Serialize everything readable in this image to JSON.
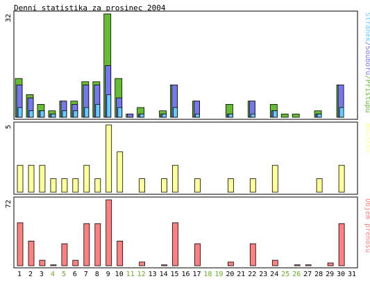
{
  "title": "Denní statistika za prosinec 2004",
  "days": [
    1,
    2,
    3,
    4,
    5,
    6,
    7,
    8,
    9,
    10,
    11,
    12,
    13,
    14,
    15,
    16,
    17,
    18,
    19,
    20,
    21,
    22,
    23,
    24,
    25,
    26,
    27,
    28,
    29,
    30,
    31
  ],
  "weekend_days": [
    4,
    5,
    11,
    12,
    18,
    19,
    25,
    26
  ],
  "colors": {
    "hits": "#66bb33",
    "files": "#7777ee",
    "pages": "#66ccff",
    "visits": "#ffff99",
    "volume": "#ff8080",
    "weekend_label": "#66aa22",
    "frame": "#000000",
    "background": "#ffffff",
    "panel_background": "#f0f0f0"
  },
  "chart_data": [
    {
      "type": "bar",
      "panel": "top",
      "ylabel_max": "32",
      "ymax": 32,
      "legend_text": [
        "Stránek",
        "/",
        "Souborů",
        "/",
        "Přístupů"
      ],
      "legend_position": "right",
      "series": [
        {
          "name": "Přístupů",
          "values": [
            12,
            7,
            4,
            2,
            5,
            5,
            11,
            11,
            32,
            12,
            1,
            3,
            0,
            2,
            10,
            0,
            5,
            0,
            0,
            4,
            0,
            5,
            0,
            4,
            1,
            1,
            0,
            2,
            0,
            10,
            0
          ]
        },
        {
          "name": "Souborů",
          "values": [
            10,
            6,
            2,
            1,
            5,
            4,
            10,
            10,
            16,
            6,
            1,
            1,
            0,
            1,
            10,
            0,
            5,
            0,
            0,
            1,
            0,
            5,
            0,
            2,
            0,
            0,
            0,
            1,
            0,
            10,
            0
          ]
        },
        {
          "name": "Stránek",
          "values": [
            3,
            2,
            2,
            1,
            2,
            2,
            3,
            4,
            7,
            3,
            0,
            1,
            0,
            1,
            3,
            0,
            1,
            0,
            0,
            1,
            0,
            1,
            0,
            2,
            0,
            0,
            0,
            1,
            0,
            3,
            0
          ]
        }
      ]
    },
    {
      "type": "bar",
      "panel": "middle",
      "ylabel_max": "5",
      "ymax": 5,
      "legend_text": [
        "Návštěv"
      ],
      "legend_position": "right",
      "series": [
        {
          "name": "Návštěv",
          "values": [
            2,
            2,
            2,
            1,
            1,
            1,
            2,
            1,
            5,
            3,
            0,
            1,
            0,
            1,
            2,
            0,
            1,
            0,
            0,
            1,
            0,
            1,
            0,
            2,
            0,
            0,
            0,
            1,
            0,
            2,
            0
          ]
        }
      ]
    },
    {
      "type": "bar",
      "panel": "bottom",
      "ylabel_max": "72",
      "ymax": 72,
      "legend_text": [
        "Objem přenosu"
      ],
      "legend_position": "right",
      "series": [
        {
          "name": "Objem přenosu",
          "values": [
            47,
            27,
            6,
            1,
            24,
            6,
            46,
            46,
            72,
            27,
            0,
            4,
            0,
            1,
            47,
            0,
            24,
            0,
            0,
            4,
            0,
            24,
            0,
            6,
            0,
            1,
            1,
            0,
            3,
            46,
            0
          ]
        }
      ]
    }
  ]
}
